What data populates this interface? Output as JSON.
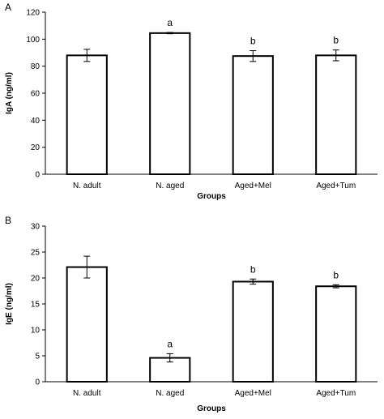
{
  "chart_data": [
    {
      "type": "bar",
      "panel_label": "A",
      "categories": [
        "N. adult",
        "N. aged",
        "Aged+Mel",
        "Aged+Tum"
      ],
      "values": [
        88,
        104.5,
        87.5,
        88
      ],
      "errors": [
        4.5,
        0.5,
        4,
        4
      ],
      "annotations": [
        "",
        "a",
        "b",
        "b"
      ],
      "xlabel": "Groups",
      "ylabel": "IgA (ng/ml)",
      "ylim": [
        0,
        120
      ],
      "yticks": [
        0,
        20,
        40,
        60,
        80,
        100,
        120
      ],
      "legend": "none",
      "grid": false,
      "colors": {
        "bar_fill": "#ffffff",
        "bar_edge": "#000000"
      }
    },
    {
      "type": "bar",
      "panel_label": "B",
      "categories": [
        "N. adult",
        "N. aged",
        "Aged+Mel",
        "Aged+Tum"
      ],
      "values": [
        22.1,
        4.6,
        19.3,
        18.4
      ],
      "errors": [
        2.1,
        0.8,
        0.5,
        0.3
      ],
      "annotations": [
        "",
        "a",
        "b",
        "b"
      ],
      "xlabel": "Groups",
      "ylabel": "IgE (ng/ml)",
      "ylim": [
        0,
        30
      ],
      "yticks": [
        0,
        5,
        10,
        15,
        20,
        25,
        30
      ],
      "legend": "none",
      "grid": false,
      "colors": {
        "bar_fill": "#ffffff",
        "bar_edge": "#000000"
      }
    }
  ]
}
